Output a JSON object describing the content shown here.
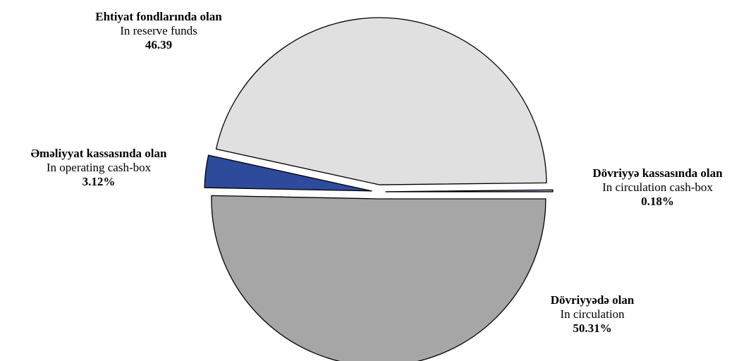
{
  "chart_data": {
    "type": "pie",
    "slices": [
      {
        "label_az": "Dövriyyədə olan",
        "label_en": "In circulation",
        "value": 50.31,
        "value_text": "50.31%",
        "color": "#a6a6a6"
      },
      {
        "label_az": "Əməliyyat kassasında olan",
        "label_en": "In operating cash-box",
        "value": 3.12,
        "value_text": "3.12%",
        "color": "#2e4a9a"
      },
      {
        "label_az": "Ehtiyat fondlarında olan",
        "label_en": "In reserve funds",
        "value": 46.39,
        "value_text": "46.39",
        "color": "#e0e0e0"
      },
      {
        "label_az": "Dövriyyə kassasında olan",
        "label_en": "In circulation cash-box",
        "value": 0.18,
        "value_text": "0.18%",
        "color": "#a9a9d6"
      }
    ],
    "exploded": true,
    "legend": "none"
  }
}
